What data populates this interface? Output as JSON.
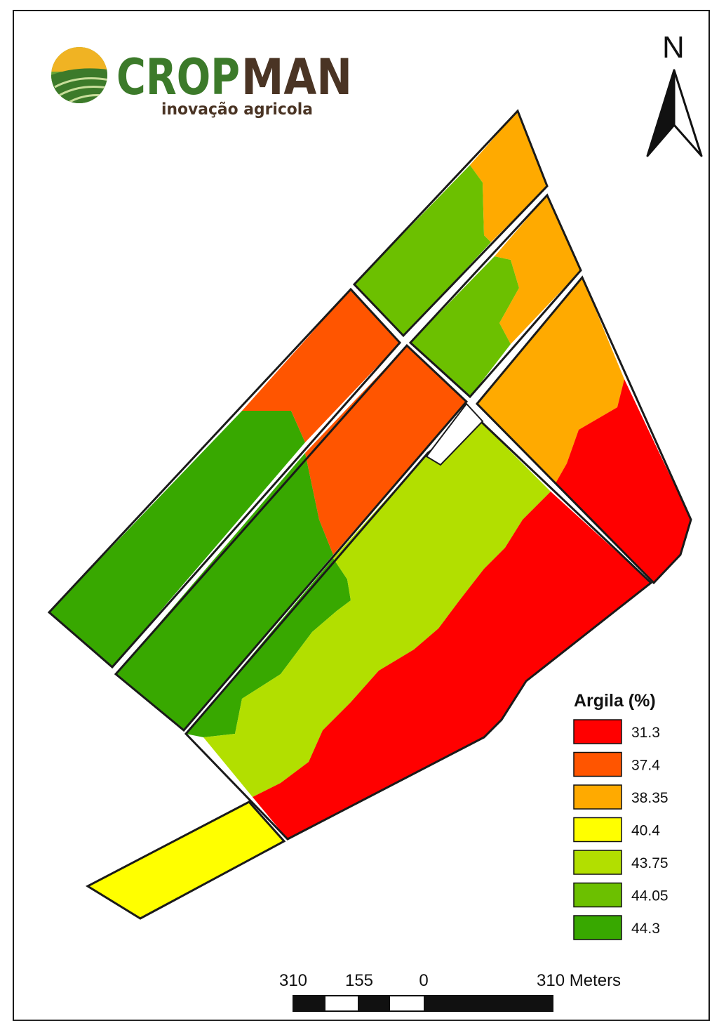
{
  "logo": {
    "word_part1": "CROP",
    "word_part2": "MAN",
    "tagline": "inovação agricola",
    "colors": {
      "green": "#3c7a2a",
      "brown": "#4a3424",
      "sun": "#f0b323"
    }
  },
  "north_arrow": {
    "label": "N"
  },
  "legend": {
    "title": "Argila (%)",
    "items": [
      {
        "label": "31.3",
        "color": "#ff0000"
      },
      {
        "label": "37.4",
        "color": "#ff5500"
      },
      {
        "label": "38.35",
        "color": "#ffaa00"
      },
      {
        "label": "40.4",
        "color": "#ffff00"
      },
      {
        "label": "43.75",
        "color": "#b2df00"
      },
      {
        "label": "44.05",
        "color": "#6cc000"
      },
      {
        "label": "44.3",
        "color": "#38a800"
      }
    ]
  },
  "scale_bar": {
    "labels": [
      "310",
      "155",
      "0",
      "310 Meters"
    ]
  }
}
